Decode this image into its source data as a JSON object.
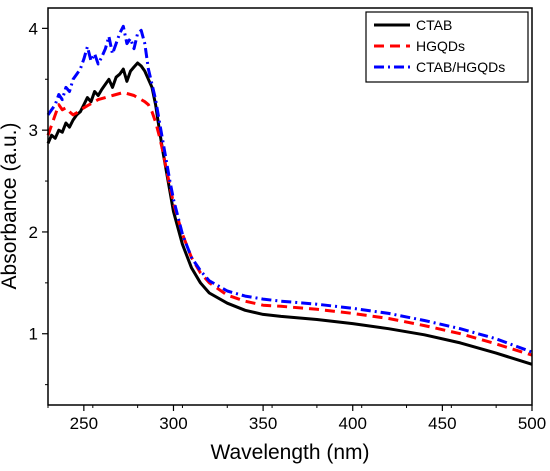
{
  "chart_data": {
    "type": "line",
    "title": "",
    "xlabel": "Wavelength (nm)",
    "ylabel": "Absorbance (a.u.)",
    "xlim": [
      230,
      500
    ],
    "ylim": [
      0.3,
      4.2
    ],
    "xticks": [
      250,
      300,
      350,
      400,
      450,
      500
    ],
    "yticks": [
      1,
      2,
      3,
      4
    ],
    "grid": false,
    "legend_position": "top-right",
    "series": [
      {
        "name": "CTAB",
        "color": "#000000",
        "line_style": "solid",
        "x": [
          230,
          232,
          234,
          236,
          238,
          240,
          242,
          244,
          246,
          248,
          250,
          252,
          254,
          256,
          258,
          260,
          262,
          264,
          266,
          268,
          270,
          272,
          274,
          276,
          278,
          280,
          282,
          284,
          286,
          288,
          290,
          292,
          294,
          296,
          298,
          300,
          305,
          310,
          315,
          320,
          330,
          340,
          350,
          360,
          380,
          400,
          420,
          440,
          460,
          480,
          500
        ],
        "y": [
          2.87,
          2.95,
          2.92,
          3.0,
          2.98,
          3.07,
          3.03,
          3.1,
          3.15,
          3.18,
          3.25,
          3.32,
          3.28,
          3.38,
          3.34,
          3.4,
          3.45,
          3.5,
          3.42,
          3.52,
          3.55,
          3.6,
          3.48,
          3.58,
          3.62,
          3.66,
          3.63,
          3.58,
          3.5,
          3.42,
          3.25,
          3.02,
          2.8,
          2.6,
          2.4,
          2.2,
          1.88,
          1.65,
          1.5,
          1.4,
          1.3,
          1.23,
          1.19,
          1.17,
          1.14,
          1.1,
          1.05,
          0.99,
          0.91,
          0.81,
          0.7
        ]
      },
      {
        "name": "HGQDs",
        "color": "#ff0000",
        "line_style": "dashed",
        "x": [
          230,
          232,
          234,
          236,
          238,
          240,
          242,
          244,
          246,
          248,
          250,
          252,
          254,
          256,
          258,
          260,
          262,
          264,
          266,
          268,
          270,
          272,
          274,
          276,
          278,
          280,
          282,
          284,
          286,
          288,
          290,
          292,
          294,
          296,
          298,
          300,
          305,
          310,
          315,
          320,
          330,
          340,
          350,
          360,
          380,
          400,
          420,
          440,
          460,
          480,
          500
        ],
        "y": [
          2.95,
          3.05,
          3.15,
          3.25,
          3.2,
          3.22,
          3.18,
          3.15,
          3.17,
          3.2,
          3.22,
          3.24,
          3.26,
          3.28,
          3.3,
          3.31,
          3.32,
          3.33,
          3.34,
          3.35,
          3.36,
          3.37,
          3.36,
          3.35,
          3.34,
          3.32,
          3.3,
          3.28,
          3.25,
          3.18,
          3.08,
          2.95,
          2.8,
          2.62,
          2.45,
          2.28,
          1.98,
          1.75,
          1.6,
          1.5,
          1.38,
          1.32,
          1.28,
          1.27,
          1.24,
          1.2,
          1.15,
          1.08,
          1.0,
          0.9,
          0.79
        ]
      },
      {
        "name": "CTAB/HGQDs",
        "color": "#0000ff",
        "line_style": "dashdot",
        "x": [
          230,
          232,
          234,
          236,
          238,
          240,
          242,
          244,
          246,
          248,
          250,
          252,
          254,
          256,
          258,
          260,
          262,
          264,
          266,
          268,
          270,
          272,
          274,
          276,
          278,
          280,
          282,
          284,
          286,
          288,
          290,
          292,
          294,
          296,
          298,
          300,
          305,
          310,
          315,
          320,
          330,
          340,
          350,
          360,
          380,
          400,
          420,
          440,
          460,
          480,
          500
        ],
        "y": [
          3.15,
          3.2,
          3.25,
          3.35,
          3.3,
          3.42,
          3.38,
          3.5,
          3.55,
          3.6,
          3.7,
          3.82,
          3.68,
          3.75,
          3.65,
          3.72,
          3.8,
          3.92,
          3.75,
          3.85,
          3.95,
          4.02,
          3.85,
          3.9,
          3.8,
          3.95,
          3.98,
          3.85,
          3.6,
          3.45,
          3.3,
          3.1,
          2.9,
          2.7,
          2.5,
          2.32,
          1.98,
          1.75,
          1.62,
          1.52,
          1.42,
          1.37,
          1.34,
          1.32,
          1.29,
          1.25,
          1.2,
          1.13,
          1.05,
          0.95,
          0.82
        ]
      }
    ]
  }
}
